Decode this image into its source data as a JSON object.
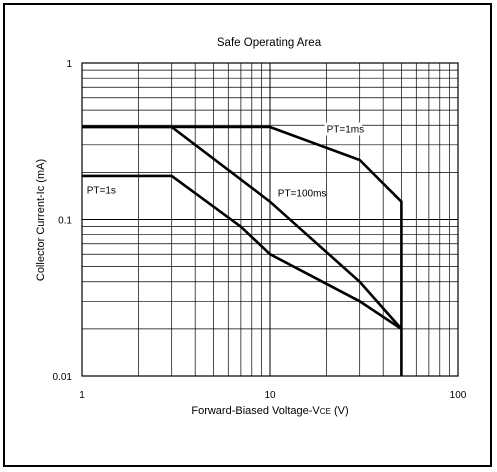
{
  "chart_data": {
    "type": "line",
    "title": "Safe Operating Area",
    "xlabel": "Forward-Biased Voltage-V",
    "xlabel_sub": "CE",
    "xlabel_unit": " (V)",
    "ylabel": "Collector Current-Ic (mA)",
    "x_scale": "log",
    "y_scale": "log",
    "xlim": [
      1,
      100
    ],
    "ylim": [
      0.01,
      1
    ],
    "grid": true,
    "x_ticks": [
      {
        "value": 1,
        "label": "1"
      },
      {
        "value": 10,
        "label": "10"
      },
      {
        "value": 100,
        "label": "100"
      }
    ],
    "y_ticks": [
      {
        "value": 1,
        "label": "1"
      },
      {
        "value": 0.1,
        "label": "0.1"
      },
      {
        "value": 0.01,
        "label": "0.01"
      }
    ],
    "series": [
      {
        "name": "PT=1ms",
        "label_at": {
          "x": 20,
          "y": 0.36
        },
        "points": [
          [
            1,
            0.39
          ],
          [
            10,
            0.39
          ],
          [
            30,
            0.24
          ],
          [
            50,
            0.13
          ],
          [
            50,
            0.01
          ]
        ]
      },
      {
        "name": "PT=100ms",
        "label_at": {
          "x": 11,
          "y": 0.14
        },
        "points": [
          [
            1,
            0.39
          ],
          [
            3,
            0.39
          ],
          [
            10,
            0.13
          ],
          [
            30,
            0.04
          ],
          [
            50,
            0.02
          ]
        ]
      },
      {
        "name": "PT=1s",
        "label_at": {
          "x": 1.06,
          "y": 0.147
        },
        "points": [
          [
            1,
            0.19
          ],
          [
            3,
            0.19
          ],
          [
            7,
            0.09
          ],
          [
            10,
            0.06
          ],
          [
            30,
            0.03
          ],
          [
            50,
            0.02
          ]
        ]
      }
    ]
  }
}
